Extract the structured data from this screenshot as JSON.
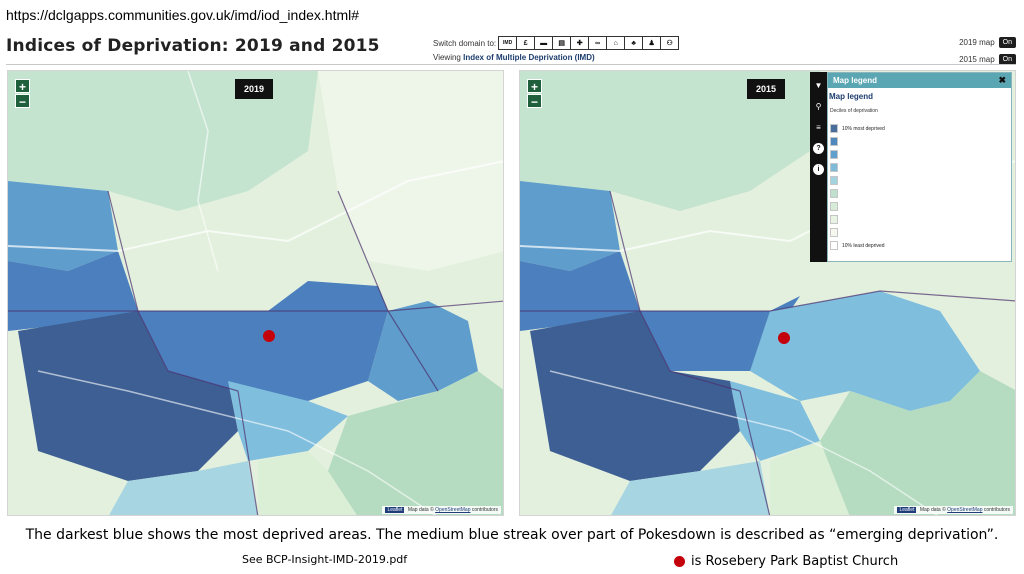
{
  "browser": {
    "url": "https://dclgapps.communities.gov.uk/imd/iod_index.html#"
  },
  "header": {
    "title": "Indices of Deprivation: 2019 and 2015",
    "switch_label": "Switch domain to:",
    "viewing_prefix": "Viewing",
    "viewing_value": "Index of Multiple Deprivation (IMD)",
    "domain_buttons": [
      {
        "label": "IMD",
        "icon": "imd-icon"
      },
      {
        "label": "£",
        "icon": "income-icon"
      },
      {
        "label": "▬",
        "icon": "employment-icon"
      },
      {
        "label": "▤",
        "icon": "education-icon"
      },
      {
        "label": "✚",
        "icon": "health-icon"
      },
      {
        "label": "∞",
        "icon": "crime-icon"
      },
      {
        "label": "⌂",
        "icon": "housing-icon"
      },
      {
        "label": "♣",
        "icon": "environment-icon"
      },
      {
        "label": "♟",
        "icon": "children-icon"
      },
      {
        "label": "⚇",
        "icon": "older-people-icon"
      }
    ],
    "toggle_2019_label": "2019 map",
    "toggle_2015_label": "2015 map",
    "toggle_on": "On"
  },
  "maps": [
    {
      "year": "2019",
      "zoom_in": "+",
      "zoom_out": "−"
    },
    {
      "year": "2015",
      "zoom_in": "+",
      "zoom_out": "−"
    }
  ],
  "attribution": {
    "leaflet": "Leaflet",
    "map_data": "Map data ©",
    "os": "OpenStreetMap",
    "contributors": "contributors"
  },
  "legend": {
    "header": "Map legend",
    "close": "✖",
    "title": "Map legend",
    "subtitle": "Deciles of deprivation",
    "items": [
      {
        "label": "10% most deprived",
        "color": "#4a6e9c"
      },
      {
        "label": "",
        "color": "#4f88bd"
      },
      {
        "label": "",
        "color": "#5fa0cc"
      },
      {
        "label": "",
        "color": "#7ebbd8"
      },
      {
        "label": "",
        "color": "#a4d3e0"
      },
      {
        "label": "",
        "color": "#bfe0cc"
      },
      {
        "label": "",
        "color": "#d6ecd9"
      },
      {
        "label": "",
        "color": "#e8f3e3"
      },
      {
        "label": "",
        "color": "#f4f8ef"
      },
      {
        "label": "10% least deprived",
        "color": "#ffffff"
      }
    ],
    "tools": [
      "pin-icon",
      "search-icon",
      "menu-icon",
      "help-icon",
      "info-icon"
    ]
  },
  "colors": {
    "decile_1": "#3e5f94",
    "decile_2": "#4b7fbd",
    "decile_3": "#5e9dcc",
    "decile_4": "#80bede",
    "decile_5": "#a7d5e2",
    "green_dark": "#90c2a8",
    "green_mid": "#b5dcc0",
    "green_light": "#dbeed6",
    "church_dot": "#c4000b"
  },
  "footer": {
    "caption": "The darkest blue shows the most deprived areas. The medium blue streak over part of Pokesdown is described as “emerging deprivation”.",
    "source": "See BCP-Insight-IMD-2019.pdf",
    "church_label": "is Rosebery Park Baptist Church"
  }
}
